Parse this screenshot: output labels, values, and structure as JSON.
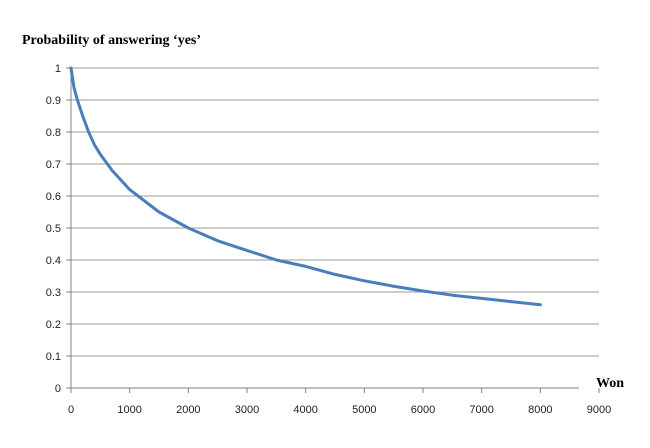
{
  "chart_data": {
    "type": "line",
    "ylabel": "Probability of answering ‘yes’",
    "xlabel": "Won",
    "xlim": [
      0,
      9000
    ],
    "ylim": [
      0,
      1
    ],
    "x_ticks": [
      "0",
      "1000",
      "2000",
      "3000",
      "4000",
      "5000",
      "6000",
      "7000",
      "8000",
      "9000"
    ],
    "y_ticks": [
      "0",
      "0.1",
      "0.2",
      "0.3",
      "0.4",
      "0.5",
      "0.6",
      "0.7",
      "0.8",
      "0.9",
      "1"
    ],
    "grid": "horizontal",
    "line_color": "#4a7ebb",
    "grid_color": "#9a9a9a",
    "series": [
      {
        "x": [
          0,
          50,
          100,
          200,
          300,
          400,
          500,
          700,
          1000,
          1500,
          2000,
          2500,
          3000,
          3500,
          4000,
          4500,
          5000,
          5500,
          6000,
          6500,
          7000,
          7500,
          8000
        ],
        "y": [
          1.0,
          0.94,
          0.905,
          0.85,
          0.8,
          0.76,
          0.73,
          0.68,
          0.62,
          0.55,
          0.5,
          0.46,
          0.43,
          0.4,
          0.38,
          0.355,
          0.335,
          0.318,
          0.303,
          0.29,
          0.28,
          0.27,
          0.26
        ]
      }
    ]
  }
}
